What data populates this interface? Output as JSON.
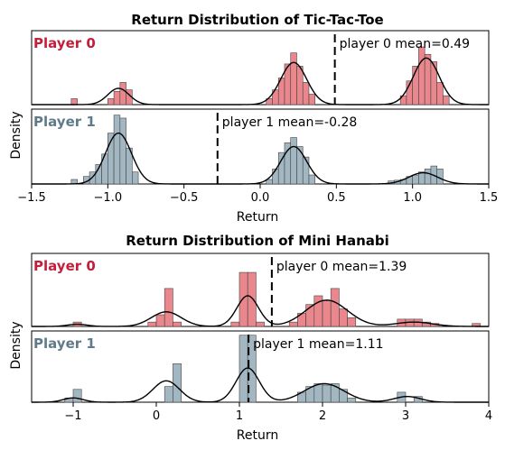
{
  "colors": {
    "player0": "#e9878d",
    "player1": "#a2b7c2",
    "player0_text": "#c41e3a",
    "player1_text": "#5f7a89"
  },
  "chart_data": [
    {
      "type": "histogram",
      "title": "Return Distribution of Tic-Tac-Toe",
      "xlabel": "Return",
      "ylabel": "Density",
      "xlim": [
        -1.5,
        1.5
      ],
      "xticks": [
        "-1.5",
        "-1.0",
        "-0.5",
        "0.0",
        "0.5",
        "1.0",
        "1.5"
      ],
      "panels": [
        {
          "label": "Player 0",
          "mean": 0.49,
          "mean_label": "player 0 mean=0.49",
          "bin_width": 0.04,
          "bins": [
            {
              "x": -1.22,
              "h": 0.08
            },
            {
              "x": -0.98,
              "h": 0.08
            },
            {
              "x": -0.94,
              "h": 0.18
            },
            {
              "x": -0.9,
              "h": 0.3
            },
            {
              "x": -0.86,
              "h": 0.2
            },
            {
              "x": 0.06,
              "h": 0.08
            },
            {
              "x": 0.1,
              "h": 0.2
            },
            {
              "x": 0.14,
              "h": 0.36
            },
            {
              "x": 0.18,
              "h": 0.55
            },
            {
              "x": 0.22,
              "h": 0.7
            },
            {
              "x": 0.26,
              "h": 0.52
            },
            {
              "x": 0.3,
              "h": 0.3
            },
            {
              "x": 0.34,
              "h": 0.14
            },
            {
              "x": 0.94,
              "h": 0.12
            },
            {
              "x": 0.98,
              "h": 0.32
            },
            {
              "x": 1.02,
              "h": 0.52
            },
            {
              "x": 1.06,
              "h": 0.78
            },
            {
              "x": 1.1,
              "h": 0.68
            },
            {
              "x": 1.14,
              "h": 0.58
            },
            {
              "x": 1.18,
              "h": 0.3
            },
            {
              "x": 1.22,
              "h": 0.12
            }
          ],
          "kde": [
            {
              "mu": -0.93,
              "sigma": 0.07,
              "amp": 0.22
            },
            {
              "mu": 0.22,
              "sigma": 0.085,
              "amp": 0.57
            },
            {
              "mu": 1.09,
              "sigma": 0.085,
              "amp": 0.63
            }
          ]
        },
        {
          "label": "Player 1",
          "mean": -0.28,
          "mean_label": "player 1 mean=-0.28",
          "bin_width": 0.04,
          "bins": [
            {
              "x": -1.22,
              "h": 0.06
            },
            {
              "x": -1.14,
              "h": 0.1
            },
            {
              "x": -1.1,
              "h": 0.16
            },
            {
              "x": -1.06,
              "h": 0.26
            },
            {
              "x": -1.02,
              "h": 0.4
            },
            {
              "x": -0.98,
              "h": 0.68
            },
            {
              "x": -0.94,
              "h": 0.92
            },
            {
              "x": -0.9,
              "h": 0.88
            },
            {
              "x": -0.86,
              "h": 0.48
            },
            {
              "x": -0.82,
              "h": 0.16
            },
            {
              "x": 0.06,
              "h": 0.06
            },
            {
              "x": 0.1,
              "h": 0.2
            },
            {
              "x": 0.14,
              "h": 0.42
            },
            {
              "x": 0.18,
              "h": 0.55
            },
            {
              "x": 0.22,
              "h": 0.62
            },
            {
              "x": 0.26,
              "h": 0.5
            },
            {
              "x": 0.3,
              "h": 0.36
            },
            {
              "x": 0.34,
              "h": 0.12
            },
            {
              "x": 0.86,
              "h": 0.04
            },
            {
              "x": 0.9,
              "h": 0.05
            },
            {
              "x": 0.94,
              "h": 0.06
            },
            {
              "x": 0.98,
              "h": 0.1
            },
            {
              "x": 1.02,
              "h": 0.12
            },
            {
              "x": 1.06,
              "h": 0.16
            },
            {
              "x": 1.1,
              "h": 0.2
            },
            {
              "x": 1.14,
              "h": 0.24
            },
            {
              "x": 1.18,
              "h": 0.2
            }
          ],
          "kde": [
            {
              "mu": -0.93,
              "sigma": 0.085,
              "amp": 0.68
            },
            {
              "mu": 0.22,
              "sigma": 0.085,
              "amp": 0.5
            },
            {
              "mu": 1.07,
              "sigma": 0.095,
              "amp": 0.15
            }
          ]
        }
      ]
    },
    {
      "type": "histogram",
      "title": "Return Distribution of Mini Hanabi",
      "xlabel": "Return",
      "ylabel": "Density",
      "xlim": [
        -1.5,
        4
      ],
      "xticks": [
        "-1",
        "0",
        "1",
        "2",
        "3",
        "4"
      ],
      "panels": [
        {
          "label": "Player 0",
          "mean": 1.39,
          "mean_label": "player 0 mean=1.39",
          "bin_width": 0.1,
          "bins": [
            {
              "x": -0.95,
              "h": 0.06
            },
            {
              "x": -0.05,
              "h": 0.06
            },
            {
              "x": 0.05,
              "h": 0.16
            },
            {
              "x": 0.15,
              "h": 0.52
            },
            {
              "x": 0.25,
              "h": 0.06
            },
            {
              "x": 0.95,
              "h": 0.06
            },
            {
              "x": 1.05,
              "h": 0.74
            },
            {
              "x": 1.15,
              "h": 0.74
            },
            {
              "x": 1.25,
              "h": 0.06
            },
            {
              "x": 1.65,
              "h": 0.06
            },
            {
              "x": 1.75,
              "h": 0.18
            },
            {
              "x": 1.85,
              "h": 0.3
            },
            {
              "x": 1.95,
              "h": 0.42
            },
            {
              "x": 2.05,
              "h": 0.36
            },
            {
              "x": 2.15,
              "h": 0.52
            },
            {
              "x": 2.25,
              "h": 0.24
            },
            {
              "x": 2.35,
              "h": 0.12
            },
            {
              "x": 2.95,
              "h": 0.1
            },
            {
              "x": 3.05,
              "h": 0.1
            },
            {
              "x": 3.15,
              "h": 0.1
            },
            {
              "x": 3.25,
              "h": 0.06
            },
            {
              "x": 3.35,
              "h": 0.04
            },
            {
              "x": 3.85,
              "h": 0.04
            }
          ],
          "kde": [
            {
              "mu": -0.95,
              "sigma": 0.12,
              "amp": 0.03
            },
            {
              "mu": 0.12,
              "sigma": 0.18,
              "amp": 0.2
            },
            {
              "mu": 1.1,
              "sigma": 0.13,
              "amp": 0.42
            },
            {
              "mu": 2.05,
              "sigma": 0.25,
              "amp": 0.36
            },
            {
              "mu": 3.1,
              "sigma": 0.22,
              "amp": 0.06
            }
          ]
        },
        {
          "label": "Player 1",
          "mean": 1.11,
          "mean_label": "player 1 mean=1.11",
          "bin_width": 0.1,
          "bins": [
            {
              "x": -1.05,
              "h": 0.06
            },
            {
              "x": -0.95,
              "h": 0.18
            },
            {
              "x": 0.15,
              "h": 0.22
            },
            {
              "x": 0.25,
              "h": 0.54
            },
            {
              "x": 1.05,
              "h": 0.94
            },
            {
              "x": 1.15,
              "h": 0.94
            },
            {
              "x": 1.75,
              "h": 0.14
            },
            {
              "x": 1.85,
              "h": 0.22
            },
            {
              "x": 1.95,
              "h": 0.26
            },
            {
              "x": 2.05,
              "h": 0.24
            },
            {
              "x": 2.15,
              "h": 0.26
            },
            {
              "x": 2.25,
              "h": 0.18
            },
            {
              "x": 2.35,
              "h": 0.06
            },
            {
              "x": 2.95,
              "h": 0.14
            },
            {
              "x": 3.15,
              "h": 0.08
            }
          ],
          "kde": [
            {
              "mu": -1.0,
              "sigma": 0.12,
              "amp": 0.06
            },
            {
              "mu": 0.12,
              "sigma": 0.16,
              "amp": 0.3
            },
            {
              "mu": 1.1,
              "sigma": 0.14,
              "amp": 0.48
            },
            {
              "mu": 2.02,
              "sigma": 0.24,
              "amp": 0.26
            },
            {
              "mu": 3.02,
              "sigma": 0.16,
              "amp": 0.08
            }
          ]
        }
      ]
    }
  ]
}
